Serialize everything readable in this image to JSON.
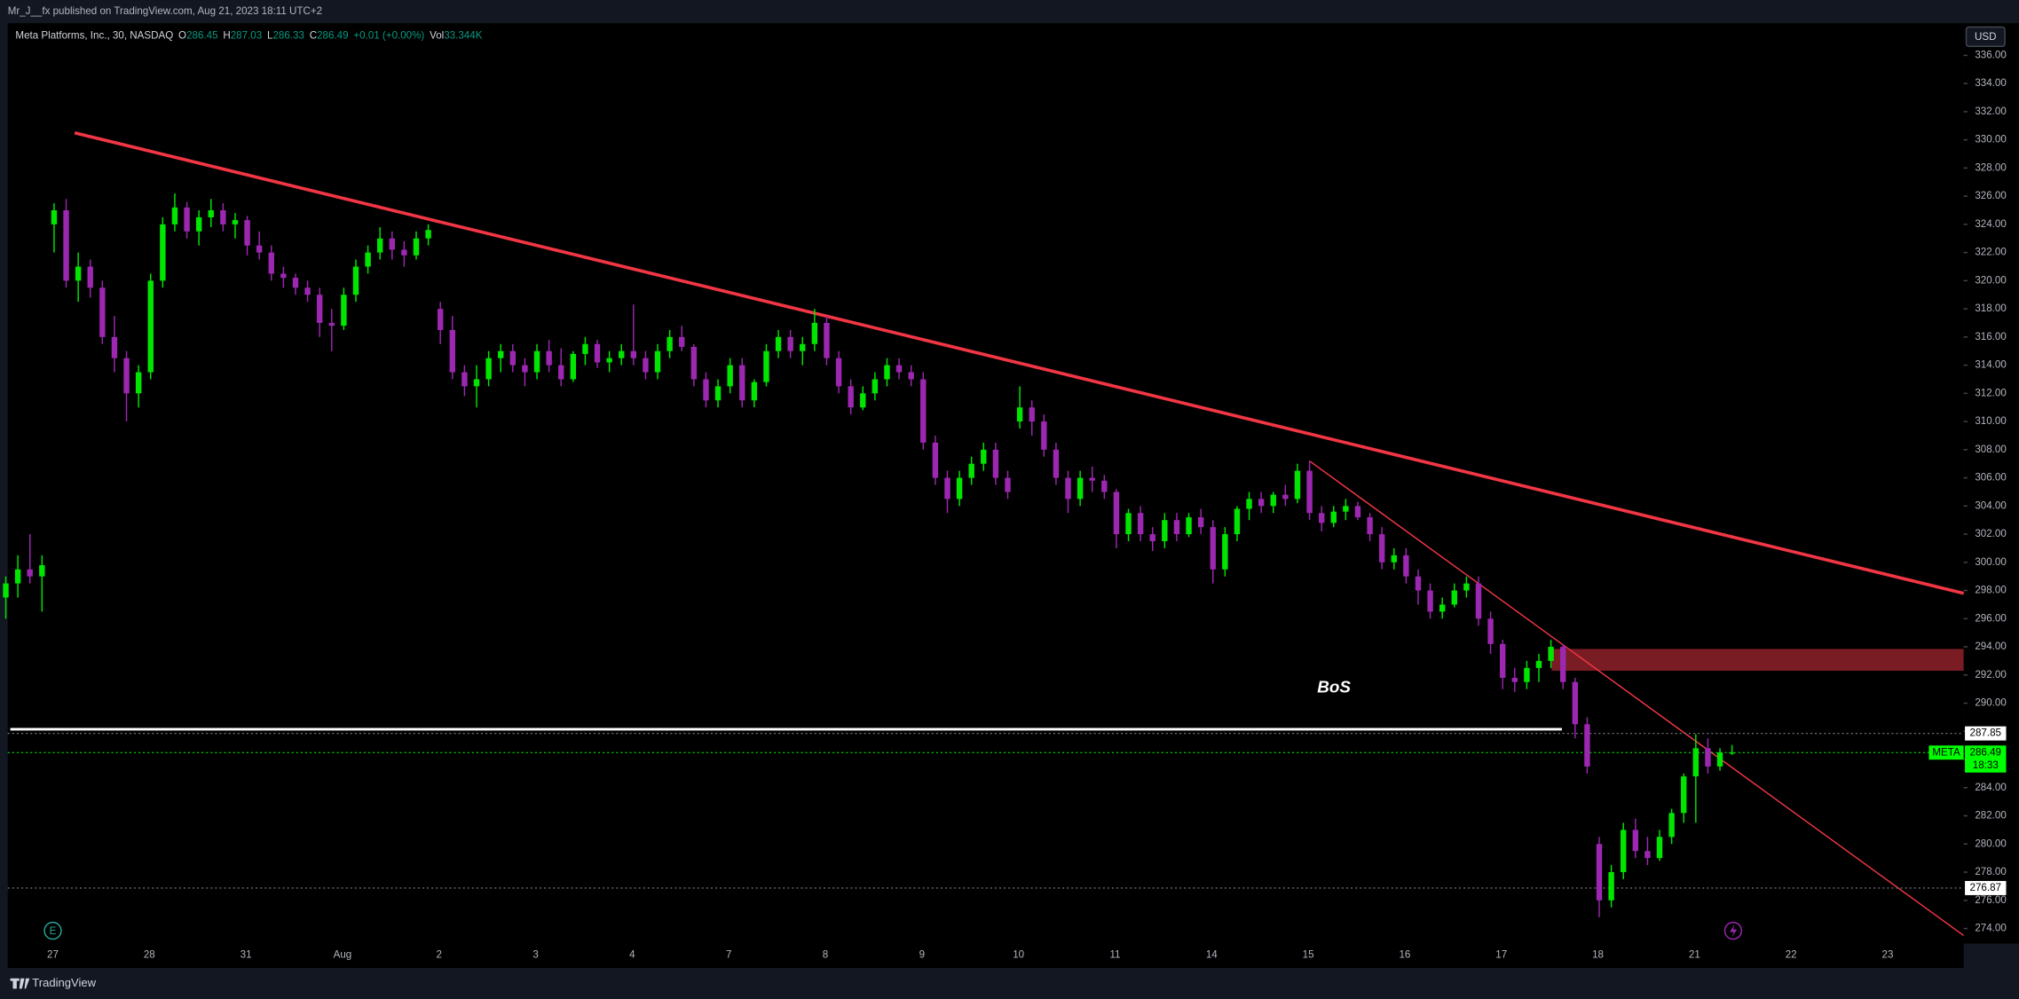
{
  "header": {
    "publisher": "Mr_J__fx published on TradingView.com, Aug 21, 2023 18:11 UTC+2"
  },
  "footer": {
    "brand": "TradingView"
  },
  "currency_button": "USD",
  "chart_data": {
    "type": "candlestick",
    "legend": {
      "symbol": "Meta Platforms, Inc., 30, NASDAQ",
      "ohlc": [
        {
          "label": "O",
          "value": 286.45
        },
        {
          "label": "H",
          "value": 287.03
        },
        {
          "label": "L",
          "value": 286.33
        },
        {
          "label": "C",
          "value": 286.49
        }
      ],
      "change": "+0.01 (+0.00%)",
      "volume_label": "Vol",
      "volume": "33.344K"
    },
    "up_color": "#00e600",
    "down_color": "#9c27b0",
    "ylim": [
      273.2,
      338.1
    ],
    "yticks": [
      {
        "value": 274,
        "label": "274.00"
      },
      {
        "value": 276,
        "label": "276.00"
      },
      {
        "value": 278,
        "label": "278.00"
      },
      {
        "value": 280,
        "label": "280.00"
      },
      {
        "value": 282,
        "label": "282.00"
      },
      {
        "value": 284,
        "label": "284.00"
      },
      {
        "value": 286,
        "label": "286.00"
      },
      {
        "value": 288,
        "label": "288.00"
      },
      {
        "value": 290,
        "label": "290.00"
      },
      {
        "value": 292,
        "label": "292.00"
      },
      {
        "value": 294,
        "label": "294.00"
      },
      {
        "value": 296,
        "label": "296.00"
      },
      {
        "value": 298,
        "label": "298.00"
      },
      {
        "value": 300,
        "label": "300.00"
      },
      {
        "value": 302,
        "label": "302.00"
      },
      {
        "value": 304,
        "label": "304.00"
      },
      {
        "value": 306,
        "label": "306.00"
      },
      {
        "value": 308,
        "label": "308.00"
      },
      {
        "value": 310,
        "label": "310.00"
      },
      {
        "value": 312,
        "label": "312.00"
      },
      {
        "value": 314,
        "label": "314.00"
      },
      {
        "value": 316,
        "label": "316.00"
      },
      {
        "value": 318,
        "label": "318.00"
      },
      {
        "value": 320,
        "label": "320.00"
      },
      {
        "value": 322,
        "label": "322.00"
      },
      {
        "value": 324,
        "label": "324.00"
      },
      {
        "value": 326,
        "label": "326.00"
      },
      {
        "value": 328,
        "label": "328.00"
      },
      {
        "value": 330,
        "label": "330.00"
      },
      {
        "value": 332,
        "label": "332.00"
      },
      {
        "value": 334,
        "label": "334.00"
      },
      {
        "value": 336,
        "label": "336.00"
      }
    ],
    "grid": false,
    "days": [
      {
        "label": null,
        "candles": [
          [
            297.5,
            299,
            296,
            298.5
          ],
          [
            298.5,
            300.5,
            297.5,
            299.5
          ],
          [
            299.5,
            302,
            298.5,
            299
          ],
          [
            299,
            300.5,
            296.5,
            299.8
          ]
        ]
      },
      {
        "label": "27",
        "candles": [
          [
            324,
            325.5,
            322,
            325
          ],
          [
            325,
            325.8,
            319.5,
            320
          ],
          [
            320,
            322,
            318.5,
            321
          ],
          [
            321,
            321.5,
            318.8,
            319.5
          ],
          [
            319.5,
            320,
            315.5,
            316
          ],
          [
            316,
            317.5,
            313.5,
            314.5
          ],
          [
            314.5,
            315,
            310,
            312
          ],
          [
            312,
            314,
            311,
            313.5
          ]
        ]
      },
      {
        "label": "28",
        "candles": [
          [
            313.5,
            320.5,
            313,
            320
          ],
          [
            320,
            324.5,
            319.5,
            324
          ],
          [
            324,
            326.2,
            323.5,
            325.2
          ],
          [
            325.2,
            325.6,
            323,
            323.5
          ],
          [
            323.5,
            325,
            322.5,
            324.5
          ],
          [
            324.5,
            325.8,
            323.8,
            325
          ],
          [
            325,
            325.5,
            323.5,
            324
          ],
          [
            324,
            324.8,
            323,
            324.3
          ]
        ]
      },
      {
        "label": "31",
        "candles": [
          [
            324.3,
            324.6,
            321.8,
            322.5
          ],
          [
            322.5,
            323.5,
            321.5,
            322
          ],
          [
            322,
            322.5,
            320,
            320.5
          ],
          [
            320.5,
            321,
            319.5,
            320.2
          ],
          [
            320.2,
            320.5,
            319,
            319.5
          ],
          [
            319.5,
            320,
            318.5,
            319
          ],
          [
            319,
            319.5,
            316,
            317
          ],
          [
            317,
            318,
            315,
            316.8
          ]
        ]
      },
      {
        "label": "Aug",
        "candles": [
          [
            316.8,
            319.5,
            316.5,
            319
          ],
          [
            319,
            321.5,
            318.5,
            321
          ],
          [
            321,
            322.5,
            320.5,
            322
          ],
          [
            322,
            323.8,
            321.5,
            323
          ],
          [
            323,
            323.5,
            321.5,
            322.2
          ],
          [
            322.2,
            322.8,
            321,
            321.8
          ],
          [
            321.8,
            323.5,
            321.5,
            323
          ],
          [
            323,
            324,
            322.5,
            323.6
          ]
        ]
      },
      {
        "label": "2",
        "candles": [
          [
            318,
            318.5,
            315.5,
            316.5
          ],
          [
            316.5,
            317.5,
            313,
            313.5
          ],
          [
            313.5,
            314,
            311.8,
            312.5
          ],
          [
            312.5,
            314,
            311,
            313
          ],
          [
            313,
            315,
            312.5,
            314.5
          ],
          [
            314.5,
            315.5,
            313.5,
            315
          ],
          [
            315,
            315.5,
            313.5,
            314
          ],
          [
            314,
            314.5,
            312.5,
            313.5
          ]
        ]
      },
      {
        "label": "3",
        "candles": [
          [
            313.5,
            315.5,
            313,
            315
          ],
          [
            315,
            315.8,
            313.5,
            314
          ],
          [
            314,
            315.2,
            312.5,
            313
          ],
          [
            313,
            315,
            312.8,
            314.8
          ],
          [
            314.8,
            316,
            314,
            315.5
          ],
          [
            315.5,
            315.8,
            313.8,
            314.2
          ],
          [
            314.2,
            315,
            313.5,
            314.5
          ],
          [
            314.5,
            315.5,
            314,
            315
          ]
        ]
      },
      {
        "label": "4",
        "candles": [
          [
            315,
            318.3,
            314,
            314.5
          ],
          [
            314.5,
            315,
            313,
            313.5
          ],
          [
            313.5,
            315.5,
            313,
            315
          ],
          [
            315,
            316.5,
            314.5,
            316
          ],
          [
            316,
            316.8,
            315,
            315.3
          ],
          [
            315.3,
            315.5,
            312.5,
            313
          ],
          [
            313,
            313.5,
            311,
            311.5
          ],
          [
            311.5,
            313,
            311,
            312.5
          ]
        ]
      },
      {
        "label": "7",
        "candles": [
          [
            312.5,
            314.5,
            312,
            314
          ],
          [
            314,
            314.5,
            311,
            311.5
          ],
          [
            311.5,
            313,
            311,
            312.8
          ],
          [
            312.8,
            315.5,
            312.5,
            315
          ],
          [
            315,
            316.5,
            314.5,
            316
          ],
          [
            316,
            316.5,
            314.5,
            315
          ],
          [
            315,
            316,
            314,
            315.5
          ],
          [
            315.5,
            318,
            315,
            317
          ]
        ]
      },
      {
        "label": "8",
        "candles": [
          [
            317,
            317.5,
            314,
            314.5
          ],
          [
            314.5,
            315,
            312,
            312.5
          ],
          [
            312.5,
            313,
            310.5,
            311
          ],
          [
            311,
            312.5,
            310.8,
            312
          ],
          [
            312,
            313.5,
            311.5,
            313
          ],
          [
            313,
            314.5,
            312.5,
            314
          ],
          [
            314,
            314.5,
            313,
            313.5
          ],
          [
            313.5,
            314,
            312.5,
            313
          ]
        ]
      },
      {
        "label": "9",
        "candles": [
          [
            313,
            313.5,
            308,
            308.5
          ],
          [
            308.5,
            309,
            305.5,
            306
          ],
          [
            306,
            306.5,
            303.5,
            304.5
          ],
          [
            304.5,
            306.5,
            304,
            306
          ],
          [
            306,
            307.5,
            305.5,
            307
          ],
          [
            307,
            308.5,
            306.5,
            308
          ],
          [
            308,
            308.5,
            305.5,
            306
          ],
          [
            306,
            306.5,
            304.5,
            305
          ]
        ]
      },
      {
        "label": "10",
        "candles": [
          [
            310,
            312.5,
            309.5,
            311
          ],
          [
            311,
            311.5,
            309,
            310
          ],
          [
            310,
            310.5,
            307.5,
            308
          ],
          [
            308,
            308.5,
            305.5,
            306
          ],
          [
            306,
            306.5,
            303.5,
            304.5
          ],
          [
            304.5,
            306.5,
            304,
            306
          ],
          [
            306,
            306.8,
            305,
            305.8
          ],
          [
            305.8,
            306.2,
            304.5,
            305
          ]
        ]
      },
      {
        "label": "11",
        "candles": [
          [
            305,
            305.2,
            301,
            302
          ],
          [
            302,
            303.8,
            301.5,
            303.5
          ],
          [
            303.5,
            304,
            301.5,
            302
          ],
          [
            302,
            302.5,
            300.8,
            301.5
          ],
          [
            301.5,
            303.5,
            301,
            303
          ],
          [
            303,
            303.5,
            301.5,
            302
          ],
          [
            302,
            303.5,
            301.8,
            303.2
          ],
          [
            303.2,
            303.8,
            302,
            302.5
          ]
        ]
      },
      {
        "label": "14",
        "candles": [
          [
            302.5,
            303,
            298.5,
            299.5
          ],
          [
            299.5,
            302.5,
            299,
            302
          ],
          [
            302,
            304,
            301.5,
            303.8
          ],
          [
            303.8,
            305,
            303,
            304.5
          ],
          [
            304.5,
            305,
            303.5,
            304
          ],
          [
            304,
            305,
            303.5,
            304.8
          ],
          [
            304.8,
            305.5,
            304,
            304.5
          ],
          [
            304.5,
            307,
            304.2,
            306.5
          ]
        ]
      },
      {
        "label": "15",
        "candles": [
          [
            306.5,
            307.2,
            303,
            303.5
          ],
          [
            303.5,
            304,
            302.2,
            302.8
          ],
          [
            302.8,
            304,
            302.5,
            303.6
          ],
          [
            303.6,
            304.5,
            303,
            304
          ],
          [
            304,
            304.3,
            303,
            303.2
          ],
          [
            303.2,
            303.5,
            301.5,
            302
          ],
          [
            302,
            302.5,
            299.5,
            300
          ],
          [
            300,
            301,
            299.5,
            300.5
          ]
        ]
      },
      {
        "label": "16",
        "candles": [
          [
            300.5,
            301,
            298.5,
            299
          ],
          [
            299,
            299.5,
            297,
            298
          ],
          [
            298,
            298.5,
            296,
            296.5
          ],
          [
            296.5,
            297.5,
            296,
            297
          ],
          [
            297,
            298.5,
            296.8,
            298
          ],
          [
            298,
            299,
            297.5,
            298.5
          ],
          [
            298.5,
            299,
            295.5,
            296
          ],
          [
            296,
            296.5,
            293.5,
            294.2
          ]
        ]
      },
      {
        "label": "17",
        "candles": [
          [
            294.2,
            294.5,
            291,
            291.8
          ],
          [
            291.8,
            292.5,
            290.8,
            291.5
          ],
          [
            291.5,
            293,
            291,
            292.5
          ],
          [
            292.5,
            293.5,
            291.5,
            293
          ],
          [
            293,
            294.5,
            292.5,
            294
          ],
          [
            294,
            294.2,
            291,
            291.5
          ],
          [
            291.5,
            291.8,
            287.5,
            288.5
          ],
          [
            288.5,
            289,
            285,
            285.5
          ]
        ]
      },
      {
        "label": "18",
        "candles": [
          [
            280,
            280.5,
            274.8,
            276
          ],
          [
            276,
            278.5,
            275.5,
            278
          ],
          [
            278,
            281.5,
            277.5,
            281
          ],
          [
            281,
            281.8,
            279,
            279.5
          ],
          [
            279.5,
            280.5,
            278.5,
            279
          ],
          [
            279,
            281,
            278.8,
            280.5
          ],
          [
            280.5,
            282.5,
            280,
            282.2
          ],
          [
            282.2,
            285,
            281.5,
            284.8
          ]
        ]
      },
      {
        "label": "21",
        "candles": [
          [
            284.8,
            287.8,
            281.5,
            286.8
          ],
          [
            286.8,
            287.5,
            285,
            285.5
          ],
          [
            285.5,
            286.8,
            285.2,
            286.5
          ],
          [
            286.45,
            287.03,
            286.33,
            286.49
          ]
        ]
      },
      {
        "label": "22",
        "candles": []
      },
      {
        "label": "23",
        "candles": []
      }
    ],
    "trendlines": [
      {
        "start": 330.5,
        "end": 297.8,
        "color": "#f23645",
        "width": 2.5
      },
      {
        "start": 307.2,
        "end": 273.5,
        "color": "#f23645",
        "width": 1
      }
    ],
    "zone": {
      "top": 293.85,
      "bottom": 292.3,
      "color": "#7a1c24"
    },
    "bos": {
      "label": "BoS",
      "value": 288.15,
      "color": "#ffffff"
    },
    "levels": [
      {
        "value": 287.85,
        "label": "287.85",
        "color": "#ffffff"
      },
      {
        "value": 276.87,
        "label": "276.87",
        "color": "#ffffff"
      }
    ],
    "last_price": {
      "symbol": "META",
      "value": 286.49,
      "countdown": "18:33",
      "color": "#00ff00"
    }
  }
}
